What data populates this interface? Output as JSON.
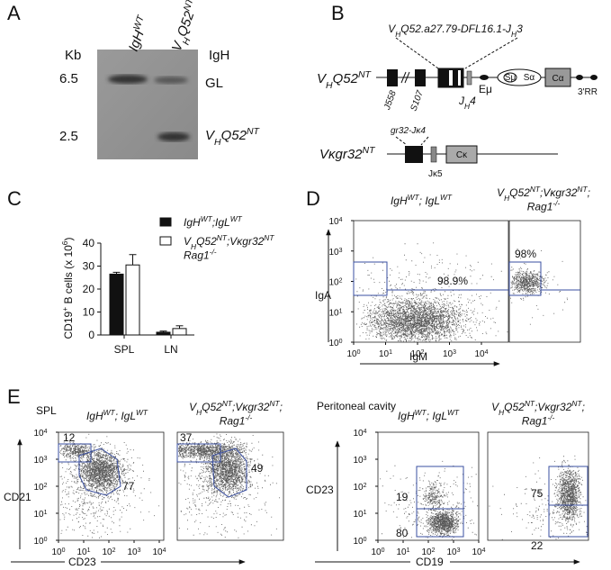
{
  "panels": {
    "A": {
      "label": "A",
      "unit": "Kb",
      "lanes": [
        [
          "IgH",
          "WT"
        ],
        [
          "V",
          "H",
          "Q52",
          "NT"
        ]
      ],
      "locus": "IgH",
      "sizes": [
        "6.5",
        "2.5"
      ],
      "bands": [
        "GL",
        [
          "V",
          "H",
          "Q52",
          "NT"
        ]
      ]
    },
    "B": {
      "label": "B",
      "top": {
        "name": [
          "V",
          "H",
          "Q52",
          "NT"
        ],
        "insert": [
          "V",
          "H",
          "Q52.a27.79-DFL16.1-J",
          "H",
          "3"
        ],
        "elements": [
          "J558",
          "S107",
          [
            "J",
            "H",
            "4"
          ],
          "Eμ",
          "Sμ",
          "Sα",
          "Cα",
          "3'RR"
        ]
      },
      "bottom": {
        "name": [
          "Vκgr32",
          "NT"
        ],
        "insert": "gr32-Jκ4",
        "elements": [
          "Jκ5",
          "Cκ"
        ]
      }
    },
    "C": {
      "label": "C",
      "chart_data": {
        "type": "bar",
        "y_label": [
          "CD19",
          "+",
          " B cells (x 10",
          "6",
          ")"
        ],
        "categories": [
          "SPL",
          "LN"
        ],
        "series": [
          {
            "name": [
              "IgH",
              "WT",
              ";IgL",
              "WT"
            ],
            "color": "#111111",
            "values": [
              26.5,
              1.2
            ],
            "errors": [
              0.8,
              0.5
            ]
          },
          {
            "name": [
              "V",
              "H",
              "Q52",
              "NT",
              ";Vκgr32",
              "NT",
              "Rag1",
              "-/-"
            ],
            "color": "#ffffff",
            "values": [
              30.5,
              2.8
            ],
            "errors": [
              4.5,
              1.2
            ]
          }
        ],
        "ylim": [
          0,
          40
        ],
        "yticks": [
          0,
          10,
          20,
          30,
          40
        ]
      }
    },
    "D": {
      "label": "D",
      "gates": [
        "98.9%",
        "98%"
      ],
      "y_label": "IgA",
      "x_label": "IgM"
    },
    "E": {
      "label": "E",
      "tissues": [
        "SPL",
        "Peritoneal cavity"
      ],
      "gates": [
        "12",
        "77",
        "37",
        "49",
        "19",
        "80",
        "75",
        "22"
      ],
      "axes": [
        "CD21",
        "CD23",
        "CD23",
        "CD19"
      ]
    }
  },
  "genotypes": [
    [
      "IgH",
      "WT",
      "; IgL",
      "WT"
    ],
    [
      "V",
      "H",
      "Q52",
      "NT",
      ";Vκgr32",
      "NT",
      ";",
      "Rag1",
      "-/-"
    ]
  ],
  "flow_ticks": [
    [
      "10",
      "0"
    ],
    [
      "10",
      "1"
    ],
    [
      "10",
      "2"
    ],
    [
      "10",
      "3"
    ],
    [
      "10",
      "4"
    ]
  ]
}
